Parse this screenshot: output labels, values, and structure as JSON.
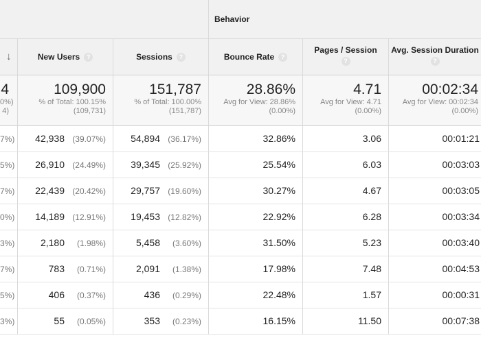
{
  "header": {
    "behavior_group": "Behavior",
    "sort_arrow": "↓",
    "help_glyph": "?",
    "columns": {
      "new_users": "New Users",
      "sessions": "Sessions",
      "bounce_rate": "Bounce Rate",
      "pages_per_session": "Pages / Session",
      "avg_session_duration": "Avg. Session Duration"
    }
  },
  "totals": {
    "users": {
      "value": "4",
      "sub1": "0%)",
      "sub2": "4)"
    },
    "new_users": {
      "value": "109,900",
      "sub1": "% of Total: 100.15%",
      "sub2": "(109,731)"
    },
    "sessions": {
      "value": "151,787",
      "sub1": "% of Total: 100.00%",
      "sub2": "(151,787)"
    },
    "bounce_rate": {
      "value": "28.86%",
      "sub1": "Avg for View: 28.86%",
      "sub2": "(0.00%)"
    },
    "pages_per_session": {
      "value": "4.71",
      "sub1": "Avg for View: 4.71",
      "sub2": "(0.00%)"
    },
    "avg_session_duration": {
      "value": "00:02:34",
      "sub1": "Avg for View: 00:02:34",
      "sub2": "(0.00%)"
    }
  },
  "rows": [
    {
      "users_pct": "7%)",
      "new_users": "42,938",
      "new_users_pct": "(39.07%)",
      "sessions": "54,894",
      "sessions_pct": "(36.17%)",
      "bounce_rate": "32.86%",
      "pages_per_session": "3.06",
      "avg_session_duration": "00:01:21"
    },
    {
      "users_pct": "5%)",
      "new_users": "26,910",
      "new_users_pct": "(24.49%)",
      "sessions": "39,345",
      "sessions_pct": "(25.92%)",
      "bounce_rate": "25.54%",
      "pages_per_session": "6.03",
      "avg_session_duration": "00:03:03"
    },
    {
      "users_pct": "7%)",
      "new_users": "22,439",
      "new_users_pct": "(20.42%)",
      "sessions": "29,757",
      "sessions_pct": "(19.60%)",
      "bounce_rate": "30.27%",
      "pages_per_session": "4.67",
      "avg_session_duration": "00:03:05"
    },
    {
      "users_pct": "0%)",
      "new_users": "14,189",
      "new_users_pct": "(12.91%)",
      "sessions": "19,453",
      "sessions_pct": "(12.82%)",
      "bounce_rate": "22.92%",
      "pages_per_session": "6.28",
      "avg_session_duration": "00:03:34"
    },
    {
      "users_pct": "3%)",
      "new_users": "2,180",
      "new_users_pct": "(1.98%)",
      "sessions": "5,458",
      "sessions_pct": "(3.60%)",
      "bounce_rate": "31.50%",
      "pages_per_session": "5.23",
      "avg_session_duration": "00:03:40"
    },
    {
      "users_pct": "7%)",
      "new_users": "783",
      "new_users_pct": "(0.71%)",
      "sessions": "2,091",
      "sessions_pct": "(1.38%)",
      "bounce_rate": "17.98%",
      "pages_per_session": "7.48",
      "avg_session_duration": "00:04:53"
    },
    {
      "users_pct": "5%)",
      "new_users": "406",
      "new_users_pct": "(0.37%)",
      "sessions": "436",
      "sessions_pct": "(0.29%)",
      "bounce_rate": "22.48%",
      "pages_per_session": "1.57",
      "avg_session_duration": "00:00:31"
    },
    {
      "users_pct": "3%)",
      "new_users": "55",
      "new_users_pct": "(0.05%)",
      "sessions": "353",
      "sessions_pct": "(0.23%)",
      "bounce_rate": "16.15%",
      "pages_per_session": "11.50",
      "avg_session_duration": "00:07:38"
    }
  ],
  "colors": {
    "header_bg": "#f1f1f1",
    "totals_bg": "#f7f7f7",
    "border": "#d9d9d9",
    "muted_text": "#777777"
  }
}
